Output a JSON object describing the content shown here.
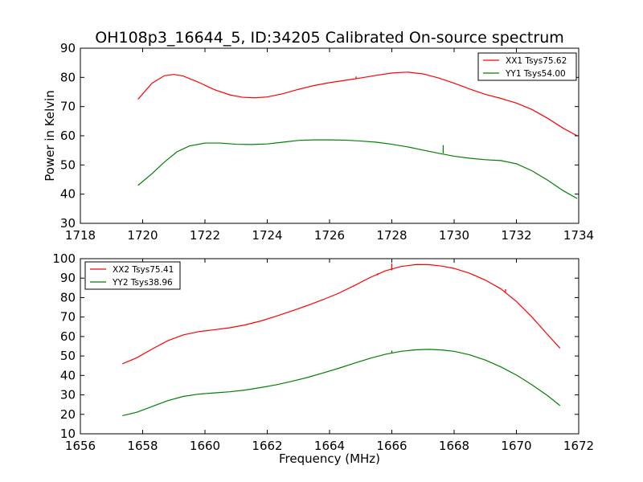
{
  "figure": {
    "title": "OH108p3_16644_5, ID:34205 Calibrated On-source spectrum",
    "ylabel": "Power in Kelvin",
    "xlabel": "Frequency (MHz)"
  },
  "chart_data": [
    {
      "type": "line",
      "xlim": [
        1718,
        1734
      ],
      "ylim": [
        30,
        90
      ],
      "xticks": [
        1718,
        1720,
        1722,
        1724,
        1726,
        1728,
        1730,
        1732,
        1734
      ],
      "yticks": [
        30,
        40,
        50,
        60,
        70,
        80,
        90
      ],
      "grid": false,
      "legend_position": "top-right",
      "series": [
        {
          "name": "XX1 Tsys75.62",
          "color": "#ff0000",
          "x": [
            1719.85,
            1720.3,
            1720.7,
            1721.0,
            1721.3,
            1721.8,
            1722.3,
            1722.8,
            1723.2,
            1723.6,
            1724.0,
            1724.5,
            1725.0,
            1725.5,
            1726.0,
            1726.5,
            1727.0,
            1727.5,
            1728.0,
            1728.5,
            1729.0,
            1729.5,
            1730.0,
            1730.5,
            1731.0,
            1731.5,
            1732.0,
            1732.5,
            1733.0,
            1733.5,
            1733.95
          ],
          "y": [
            72.5,
            78.0,
            80.6,
            81.0,
            80.5,
            78.3,
            75.8,
            74.0,
            73.2,
            73.0,
            73.3,
            74.4,
            75.9,
            77.2,
            78.2,
            79.0,
            79.8,
            80.7,
            81.5,
            81.8,
            81.2,
            79.8,
            78.0,
            76.0,
            74.2,
            72.8,
            71.2,
            69.0,
            66.0,
            62.6,
            60.0
          ],
          "spikes": [
            {
              "x": 1726.85,
              "y0": 79.5,
              "y1": 80.3
            }
          ]
        },
        {
          "name": "YY1 Tsys54.00",
          "color": "#008000",
          "x": [
            1719.85,
            1720.3,
            1720.7,
            1721.1,
            1721.5,
            1722.0,
            1722.5,
            1723.0,
            1723.5,
            1724.0,
            1724.5,
            1725.0,
            1725.5,
            1726.0,
            1726.5,
            1727.0,
            1727.5,
            1728.0,
            1728.5,
            1729.0,
            1729.5,
            1730.0,
            1730.5,
            1731.0,
            1731.5,
            1732.0,
            1732.5,
            1733.0,
            1733.5,
            1733.95
          ],
          "y": [
            43.0,
            47.0,
            51.0,
            54.5,
            56.5,
            57.5,
            57.5,
            57.1,
            57.0,
            57.2,
            57.8,
            58.4,
            58.6,
            58.6,
            58.5,
            58.2,
            57.8,
            57.1,
            56.2,
            55.1,
            54.0,
            53.0,
            52.3,
            51.8,
            51.5,
            50.4,
            48.0,
            44.8,
            41.2,
            38.5
          ],
          "spikes": [
            {
              "x": 1729.65,
              "y0": 54.0,
              "y1": 56.8
            }
          ]
        }
      ]
    },
    {
      "type": "line",
      "xlim": [
        1656,
        1672
      ],
      "ylim": [
        10,
        100
      ],
      "xticks": [
        1656,
        1658,
        1660,
        1662,
        1664,
        1666,
        1668,
        1670,
        1672
      ],
      "yticks": [
        10,
        20,
        30,
        40,
        50,
        60,
        70,
        80,
        90,
        100
      ],
      "grid": false,
      "legend_position": "top-left",
      "series": [
        {
          "name": "XX2 Tsys75.41",
          "color": "#ff0000",
          "x": [
            1657.35,
            1657.8,
            1658.3,
            1658.8,
            1659.3,
            1659.8,
            1660.3,
            1660.8,
            1661.3,
            1661.8,
            1662.3,
            1662.8,
            1663.3,
            1663.8,
            1664.3,
            1664.8,
            1665.3,
            1665.8,
            1666.3,
            1666.8,
            1667.2,
            1667.6,
            1668.0,
            1668.5,
            1669.0,
            1669.5,
            1670.0,
            1670.5,
            1671.0,
            1671.4
          ],
          "y": [
            46.0,
            49.0,
            53.5,
            57.8,
            60.8,
            62.5,
            63.5,
            64.5,
            66.0,
            68.0,
            70.5,
            73.2,
            76.0,
            79.0,
            82.3,
            86.2,
            90.3,
            93.8,
            96.0,
            97.0,
            96.9,
            96.2,
            95.0,
            92.5,
            89.0,
            84.5,
            78.0,
            70.0,
            61.0,
            54.0
          ],
          "spikes": [
            {
              "x": 1666.0,
              "y0": 94.0,
              "y1": 97.5
            },
            {
              "x": 1665.55,
              "y0": 91.5,
              "y1": 92.5
            },
            {
              "x": 1669.65,
              "y0": 82.8,
              "y1": 84.3
            }
          ]
        },
        {
          "name": "YY2 Tsys38.96",
          "color": "#008000",
          "x": [
            1657.35,
            1657.8,
            1658.3,
            1658.8,
            1659.3,
            1659.8,
            1660.3,
            1660.8,
            1661.3,
            1661.8,
            1662.3,
            1662.8,
            1663.3,
            1663.8,
            1664.3,
            1664.8,
            1665.3,
            1665.8,
            1666.3,
            1666.8,
            1667.2,
            1667.6,
            1668.0,
            1668.5,
            1669.0,
            1669.5,
            1670.0,
            1670.5,
            1671.0,
            1671.4
          ],
          "y": [
            19.3,
            21.0,
            24.0,
            27.0,
            29.2,
            30.4,
            31.0,
            31.6,
            32.5,
            33.8,
            35.2,
            37.0,
            39.0,
            41.3,
            43.7,
            46.3,
            48.8,
            50.9,
            52.4,
            53.2,
            53.4,
            53.1,
            52.4,
            50.6,
            47.9,
            44.4,
            40.2,
            35.2,
            29.6,
            24.5
          ],
          "spikes": [
            {
              "x": 1666.0,
              "y0": 51.5,
              "y1": 52.8
            }
          ]
        }
      ]
    }
  ]
}
